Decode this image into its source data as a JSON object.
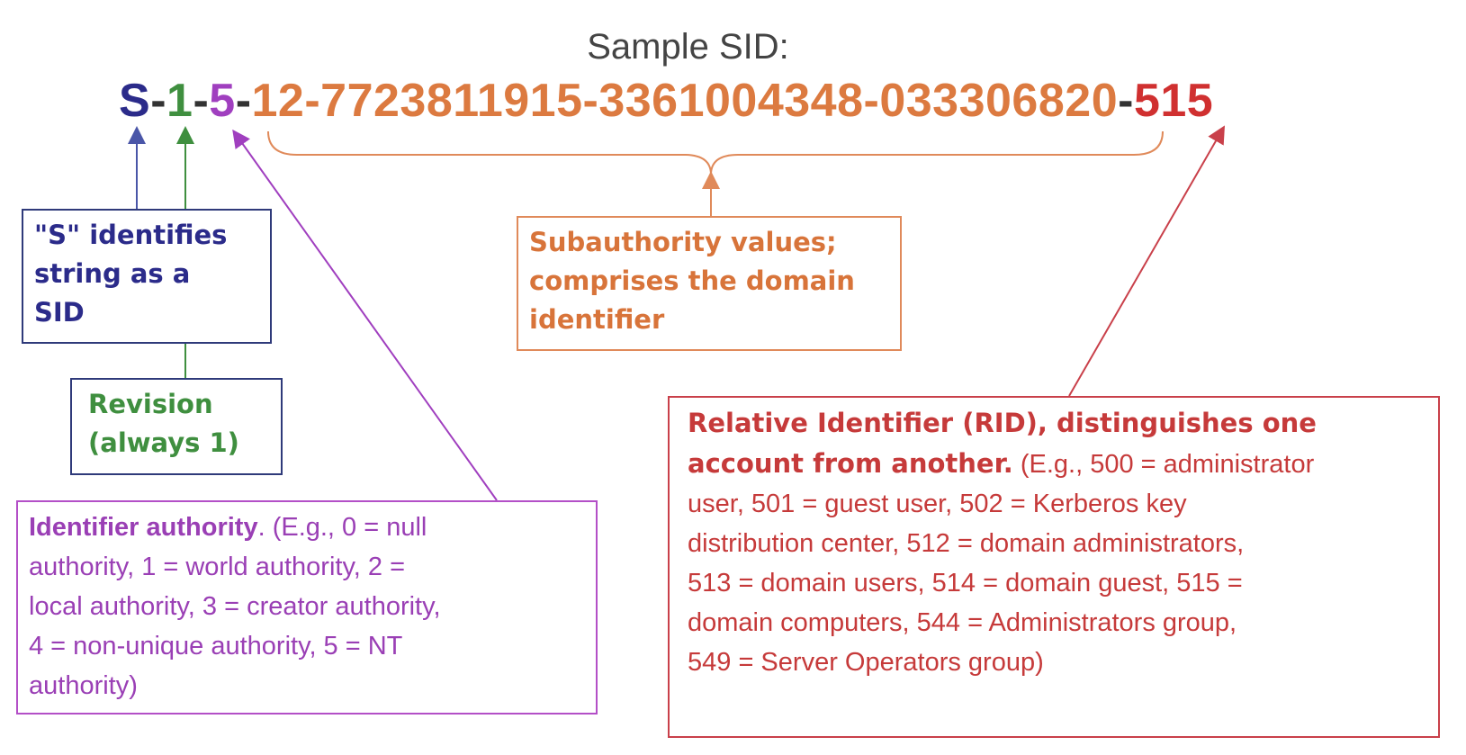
{
  "caption": "Sample SID:",
  "sid": {
    "parts": [
      {
        "text": "S",
        "color": "#2b2b8a"
      },
      {
        "text": "-",
        "color": "#333333"
      },
      {
        "text": "1",
        "color": "#3f8f3f"
      },
      {
        "text": "-",
        "color": "#333333"
      },
      {
        "text": "5",
        "color": "#a03fbf"
      },
      {
        "text": "-",
        "color": "#333333"
      },
      {
        "text": "12-7723811915-3361004348-033306820",
        "color": "#dc7a40"
      },
      {
        "text": "-",
        "color": "#333333"
      },
      {
        "text": "515",
        "color": "#d03030"
      }
    ]
  },
  "boxes": {
    "s_identifier": {
      "line1": "\"S\" identifies",
      "line2": "string as a",
      "line3": "SID"
    },
    "revision": {
      "line1": "Revision",
      "line2": "(always 1)"
    },
    "subauthority": {
      "line1": "Subauthority values;",
      "line2": "comprises the domain",
      "line3": "identifier"
    },
    "identifier_authority": {
      "bold": "Identifier authority",
      "line1_rest": ". (E.g., 0 = null",
      "line2": "authority, 1 = world authority, 2 =",
      "line3": "local authority, 3 = creator authority,",
      "line4": "4 = non-unique authority, 5 = NT",
      "line5": "authority)"
    },
    "rid": {
      "bold1": "Relative Identifier (RID), distinguishes one",
      "bold2": "account from another.",
      "line2_rest": " (E.g., 500 = administrator",
      "line3": "user, 501 = guest user, 502 = Kerberos key",
      "line4": "distribution center, 512 = domain administrators,",
      "line5": "513 = domain users, 514 = domain guest, 515 =",
      "line6": "domain computers, 544 = Administrators group,",
      "line7": "549 = Server Operators group)"
    }
  },
  "colors": {
    "s_arrow": "#4a56a8",
    "revision_arrow": "#3f8f3f",
    "authority_arrow": "#a03fbf",
    "subauthority_brace": "#e08a5a",
    "rid_arrow": "#c9404a"
  }
}
